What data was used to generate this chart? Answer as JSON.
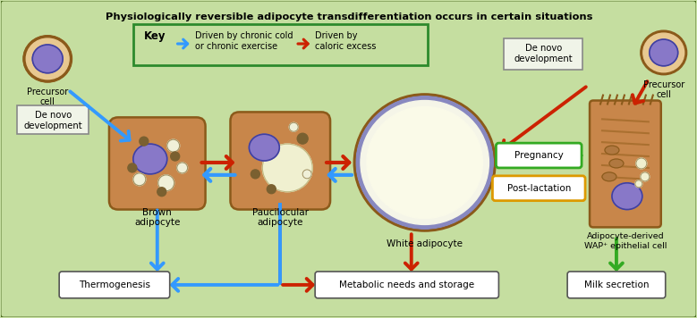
{
  "title": "Physiologically reversible adipocyte transdifferentiation occurs in certain situations",
  "background_color": "#c5dea0",
  "border_color": "#6a6a6a",
  "key_box_color": "#2d8a2d",
  "key_text_blue": "Driven by chronic cold\nor chronic exercise",
  "key_text_red": "Driven by\ncaloric excess",
  "key_label": "Key",
  "labels": {
    "precursor_left": "Precursor\ncell",
    "precursor_right": "Precursor\ncell",
    "de_novo_left": "De novo\ndevelopment",
    "de_novo_right": "De novo\ndevelopment",
    "brown": "Brown\nadipocyte",
    "pauci": "Paucilocular\nadipocyte",
    "white": "White adipocyte",
    "wap": "Adipocyte-derived\nWAP⁺ epithelial cell",
    "thermogenesis": "Thermogenesis",
    "metabolic": "Metabolic needs and storage",
    "milk": "Milk secretion",
    "pregnancy": "Pregnancy",
    "postlactation": "Post-lactation"
  },
  "arrow_blue": "#3399ff",
  "arrow_red": "#cc2200",
  "arrow_green": "#33aa22",
  "arrow_orange": "#dd9900",
  "cell_brown_fill": "#c8864a",
  "cell_brown_dark": "#8b5a1a",
  "cell_outline_dark": "#6b3a00",
  "nucleus_purple_light": "#8878c8",
  "nucleus_purple_dark": "#5548a0",
  "nucleus_outline": "#4040a0",
  "lipid_fill": "#f0f0d8",
  "lipid_outline": "#a09060",
  "lipid_dark": "#7a6030"
}
